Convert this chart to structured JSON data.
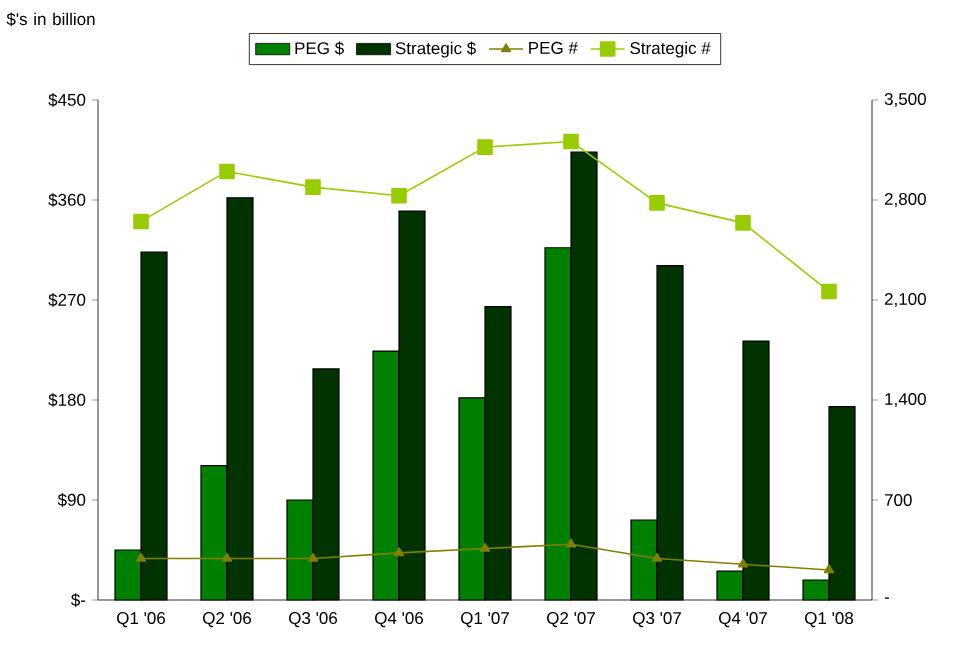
{
  "chart_data": {
    "type": "bar",
    "ylabel": "$'s in billion",
    "legend": "top",
    "categories": [
      "Q1 '06",
      "Q2 '06",
      "Q3 '06",
      "Q4 '06",
      "Q1 '07",
      "Q2 '07",
      "Q3 '07",
      "Q4 '07",
      "Q1 '08"
    ],
    "series": [
      {
        "name": "PEG $",
        "color": "#008000",
        "values": [
          45,
          121,
          90,
          224,
          182,
          317,
          72,
          26,
          18
        ]
      },
      {
        "name": "Strategic $",
        "color": "#003300",
        "values": [
          313,
          362,
          208,
          350,
          264,
          403,
          301,
          233,
          174
        ]
      },
      {
        "name": "PEG #",
        "type": "line",
        "axis": "y2",
        "marker": "triangle",
        "color": "#808000",
        "values": [
          290,
          290,
          290,
          330,
          360,
          390,
          290,
          250,
          210
        ]
      },
      {
        "name": "Strategic #",
        "type": "line",
        "axis": "y2",
        "marker": "square",
        "color": "#99cc00",
        "values": [
          2650,
          3000,
          2890,
          2830,
          3170,
          3210,
          2780,
          2640,
          2160
        ]
      }
    ],
    "ylim": [
      0,
      450
    ],
    "yticks": [
      {
        "value": 0,
        "label": "$-"
      },
      {
        "value": 90,
        "label": "$90"
      },
      {
        "value": 180,
        "label": "$180"
      },
      {
        "value": 270,
        "label": "$270"
      },
      {
        "value": 360,
        "label": "$360"
      },
      {
        "value": 450,
        "label": "$450"
      }
    ],
    "y2lim": [
      0,
      3500
    ],
    "y2ticks": [
      {
        "value": 0,
        "label": "-"
      },
      700,
      {
        "value": 1400,
        "label": "1,400"
      },
      {
        "value": 2100,
        "label": "2,100"
      },
      {
        "value": 2800,
        "label": "2,800"
      },
      {
        "value": 3500,
        "label": "3,500"
      }
    ]
  }
}
